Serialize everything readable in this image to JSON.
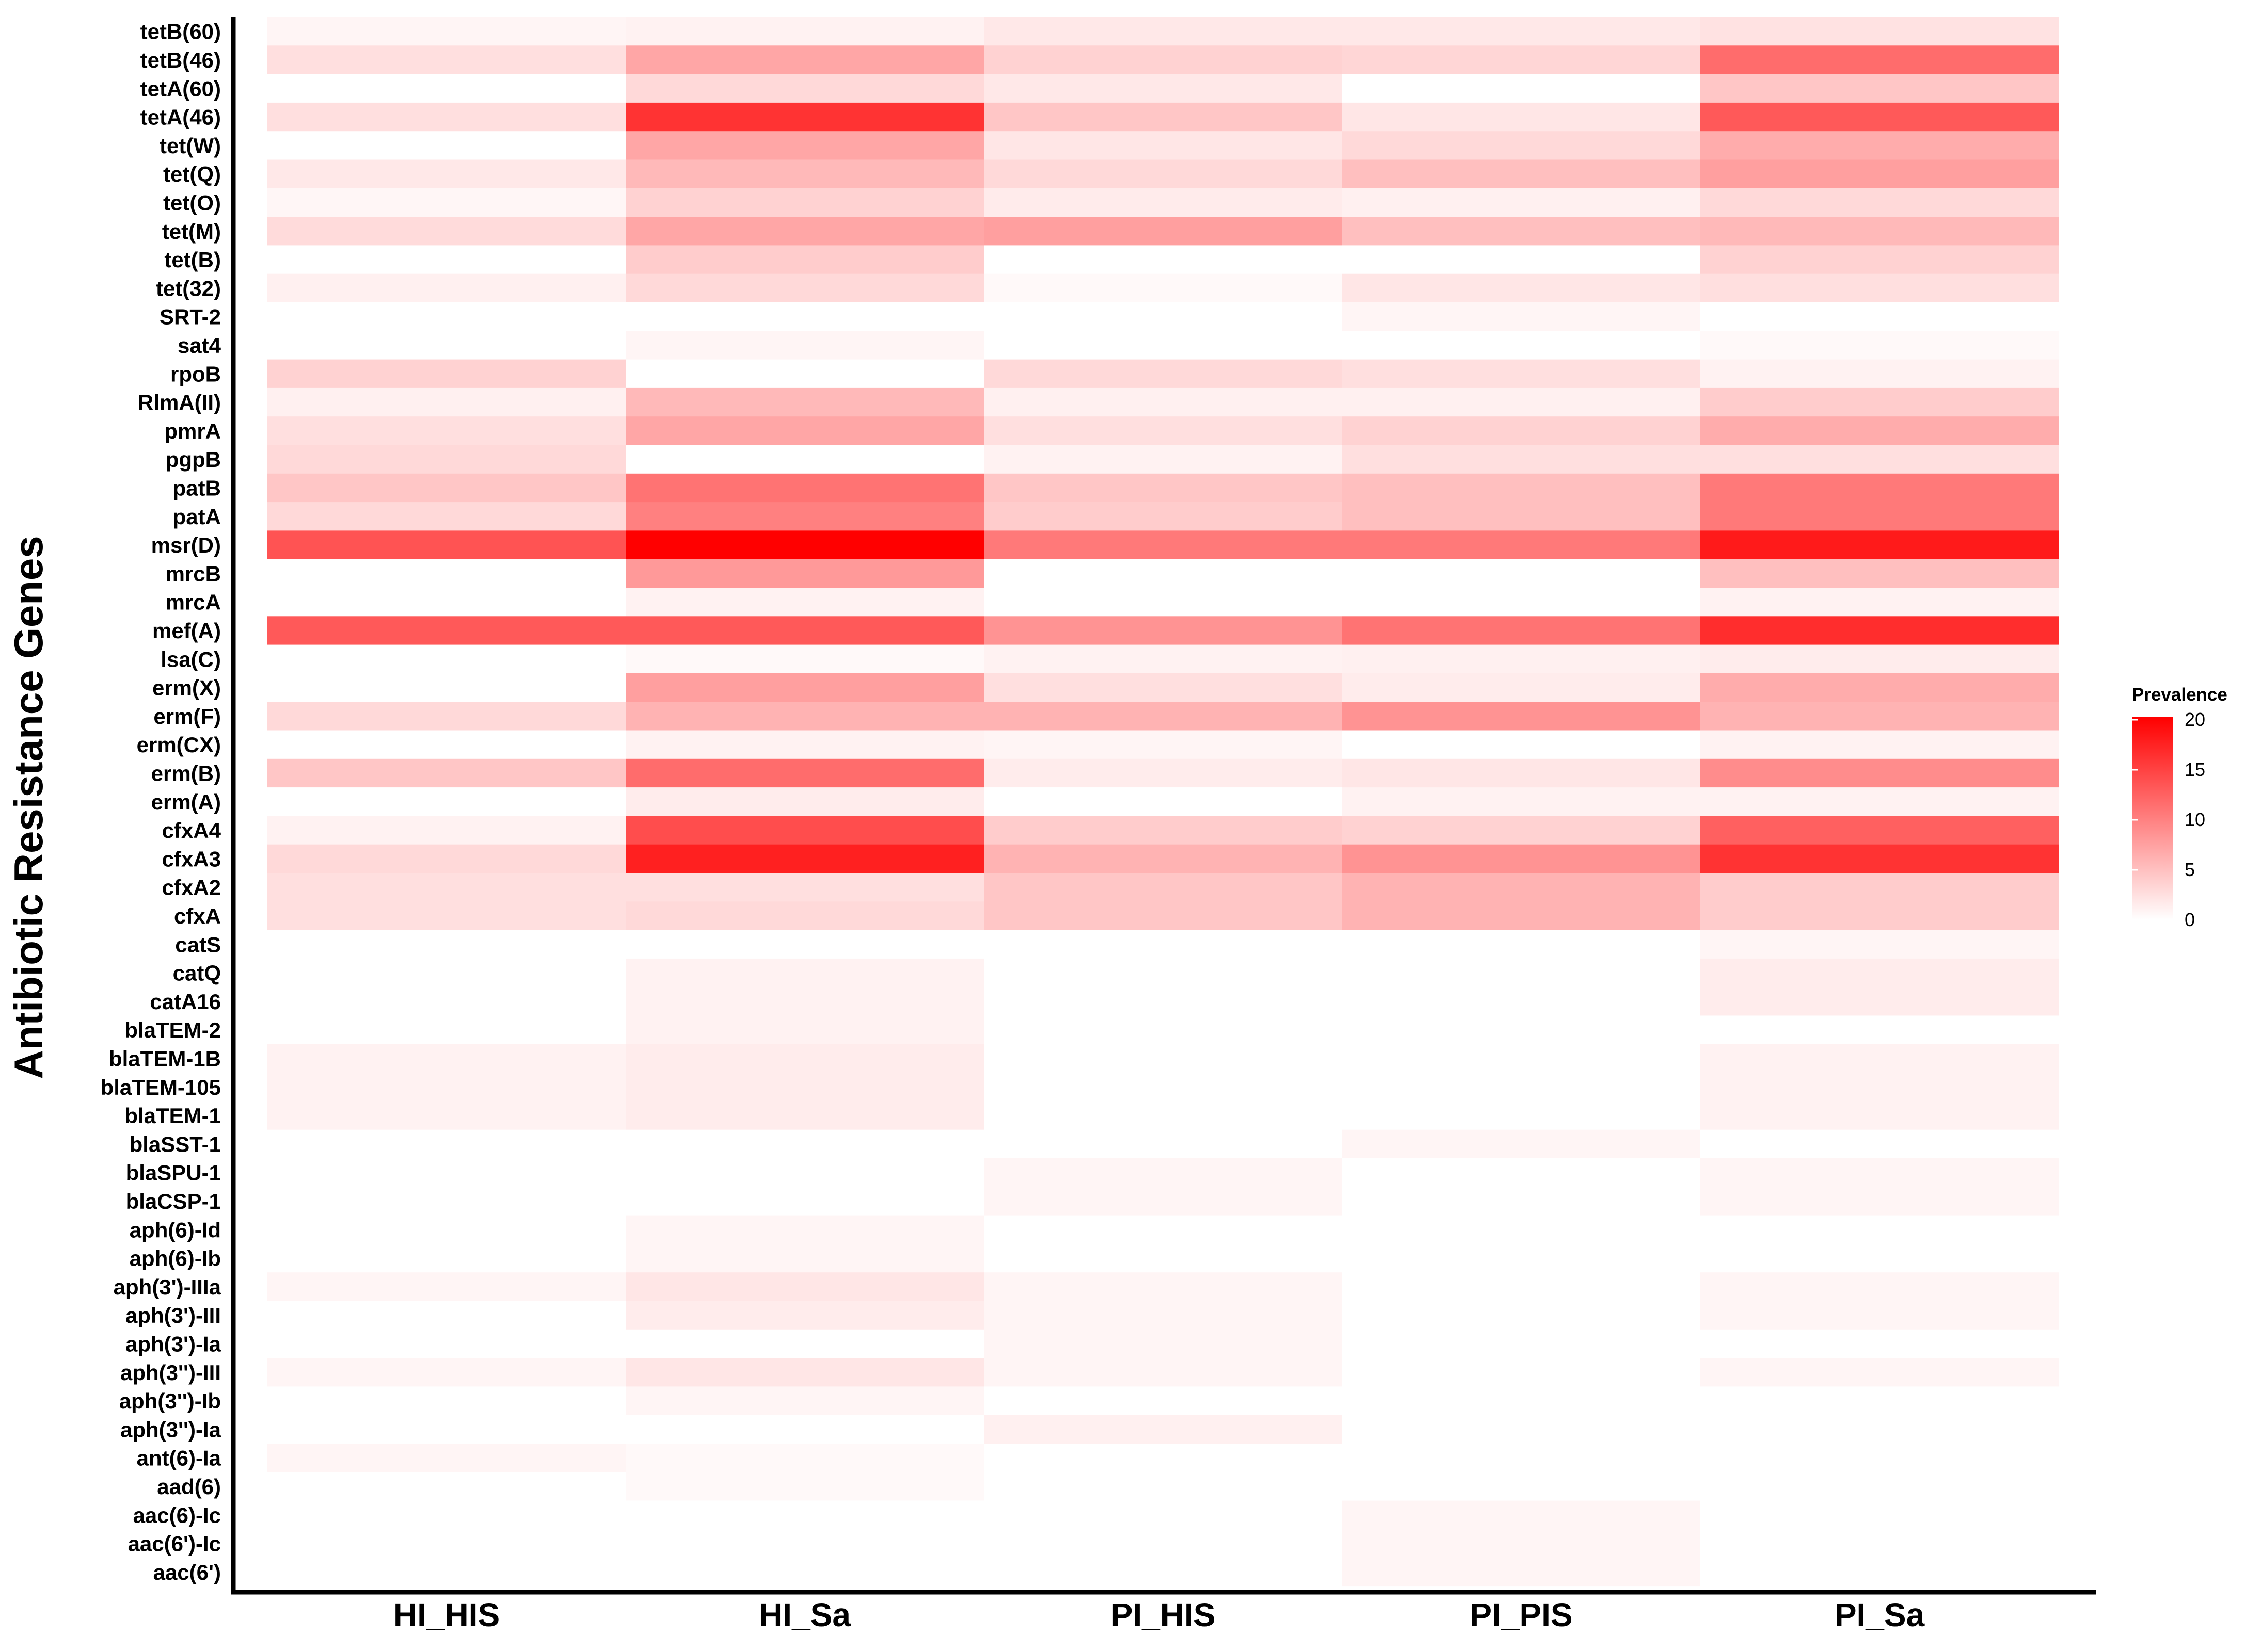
{
  "chart_data": {
    "type": "heatmap",
    "title": "",
    "xlabel": "",
    "ylabel": "Antibiotic Resistance Genes",
    "x": [
      "HI_HIS",
      "HI_Sa",
      "PI_HIS",
      "PI_PIS",
      "PI_Sa"
    ],
    "y": [
      "tetB(60)",
      "tetB(46)",
      "tetA(60)",
      "tetA(46)",
      "tet(W)",
      "tet(Q)",
      "tet(O)",
      "tet(M)",
      "tet(B)",
      "tet(32)",
      "SRT-2",
      "sat4",
      "rpoB",
      "RlmA(II)",
      "pmrA",
      "pgpB",
      "patB",
      "patA",
      "msr(D)",
      "mrcB",
      "mrcA",
      "mef(A)",
      "lsa(C)",
      "erm(X)",
      "erm(F)",
      "erm(CX)",
      "erm(B)",
      "erm(A)",
      "cfxA4",
      "cfxA3",
      "cfxA2",
      "cfxA",
      "catS",
      "catQ",
      "catA16",
      "blaTEM-2",
      "blaTEM-1B",
      "blaTEM-105",
      "blaTEM-1",
      "blaSST-1",
      "blaSPU-1",
      "blaCSP-1",
      "aph(6)-Id",
      "aph(6)-Ib",
      "aph(3')-IIIa",
      "aph(3')-III",
      "aph(3')-Ia",
      "aph(3'')-III",
      "aph(3'')-Ib",
      "aph(3'')-Ia",
      "ant(6)-Ia",
      "aad(6)",
      "aac(6)-Ic",
      "aac(6')-Ic",
      "aac(6')"
    ],
    "values": [
      [
        0.8,
        1.0,
        1.8,
        1.8,
        2.3
      ],
      [
        2.5,
        7.0,
        3.5,
        3.2,
        11.5
      ],
      [
        0,
        3.0,
        1.8,
        0,
        4.5
      ],
      [
        2.5,
        16.0,
        4.5,
        2.0,
        13.0
      ],
      [
        0,
        7.0,
        2.0,
        3.0,
        6.5
      ],
      [
        1.8,
        5.5,
        3.0,
        5.0,
        7.5
      ],
      [
        0.7,
        3.5,
        1.6,
        1.2,
        3.0
      ],
      [
        2.8,
        7.0,
        7.5,
        5.0,
        5.5
      ],
      [
        0,
        4.0,
        0,
        0,
        3.5
      ],
      [
        1.2,
        3.0,
        0.5,
        2.0,
        2.5
      ],
      [
        0,
        0,
        0,
        0.8,
        0
      ],
      [
        0,
        0.8,
        0,
        0,
        0.5
      ],
      [
        3.5,
        0,
        3.0,
        2.5,
        1.0
      ],
      [
        1.2,
        5.5,
        1.2,
        1.2,
        4.0
      ],
      [
        2.5,
        7.0,
        2.5,
        3.5,
        6.5
      ],
      [
        3.0,
        0,
        1.0,
        2.5,
        2.5
      ],
      [
        4.5,
        11.0,
        4.5,
        5.0,
        10.5
      ],
      [
        3.0,
        10.0,
        4.0,
        5.0,
        10.5
      ],
      [
        13.5,
        20.0,
        10.5,
        10.5,
        18.0
      ],
      [
        0,
        8.0,
        0,
        0,
        5.0
      ],
      [
        0,
        1.0,
        0,
        0,
        1.0
      ],
      [
        13.0,
        13.0,
        8.5,
        11.0,
        16.5
      ],
      [
        0,
        0.5,
        1.0,
        1.2,
        1.5
      ],
      [
        0,
        7.5,
        2.5,
        1.5,
        6.5
      ],
      [
        3.0,
        6.0,
        6.0,
        8.5,
        6.0
      ],
      [
        0,
        1.0,
        0.8,
        0,
        1.0
      ],
      [
        4.5,
        11.5,
        1.5,
        2.0,
        9.0
      ],
      [
        0,
        1.5,
        0,
        1.0,
        1.0
      ],
      [
        1.0,
        14.0,
        4.0,
        3.5,
        12.5
      ],
      [
        3.0,
        17.5,
        6.0,
        8.5,
        16.0
      ],
      [
        2.5,
        2.5,
        4.5,
        6.0,
        4.0
      ],
      [
        2.5,
        3.0,
        4.5,
        6.0,
        4.0
      ],
      [
        0,
        0,
        0,
        0,
        0.8
      ],
      [
        0,
        1.0,
        0,
        0,
        1.5
      ],
      [
        0,
        1.0,
        0,
        0,
        1.5
      ],
      [
        0,
        1.0,
        0,
        0,
        0
      ],
      [
        1.0,
        1.5,
        0,
        0,
        1.0
      ],
      [
        1.0,
        1.5,
        0,
        0,
        1.0
      ],
      [
        1.0,
        1.5,
        0,
        0,
        1.0
      ],
      [
        0,
        0,
        0,
        0.8,
        0
      ],
      [
        0,
        0,
        0.8,
        0,
        0.8
      ],
      [
        0,
        0,
        0.8,
        0,
        0.8
      ],
      [
        0,
        0.8,
        0,
        0,
        0
      ],
      [
        0,
        0.8,
        0,
        0,
        0
      ],
      [
        0.8,
        2.0,
        0.8,
        0,
        0.8
      ],
      [
        0,
        1.5,
        0.8,
        0,
        0.8
      ],
      [
        0,
        0,
        0.8,
        0,
        0
      ],
      [
        0.8,
        2.0,
        0.8,
        0,
        0.8
      ],
      [
        0,
        0.8,
        0,
        0,
        0
      ],
      [
        0,
        0,
        1.2,
        0,
        0
      ],
      [
        0.8,
        0.5,
        0,
        0,
        0
      ],
      [
        0,
        0.5,
        0,
        0,
        0
      ],
      [
        0,
        0,
        0,
        0.8,
        0
      ],
      [
        0,
        0,
        0,
        0.8,
        0
      ],
      [
        0,
        0,
        0,
        0.8,
        0
      ]
    ],
    "value_range": [
      0,
      20
    ],
    "colors": {
      "low": "#ffffff",
      "high": "#ff0000"
    },
    "legend": {
      "title": "Prevalence",
      "ticks": [
        "20",
        "15",
        "10",
        "5",
        "0"
      ],
      "placement": "right"
    },
    "grid": false
  }
}
